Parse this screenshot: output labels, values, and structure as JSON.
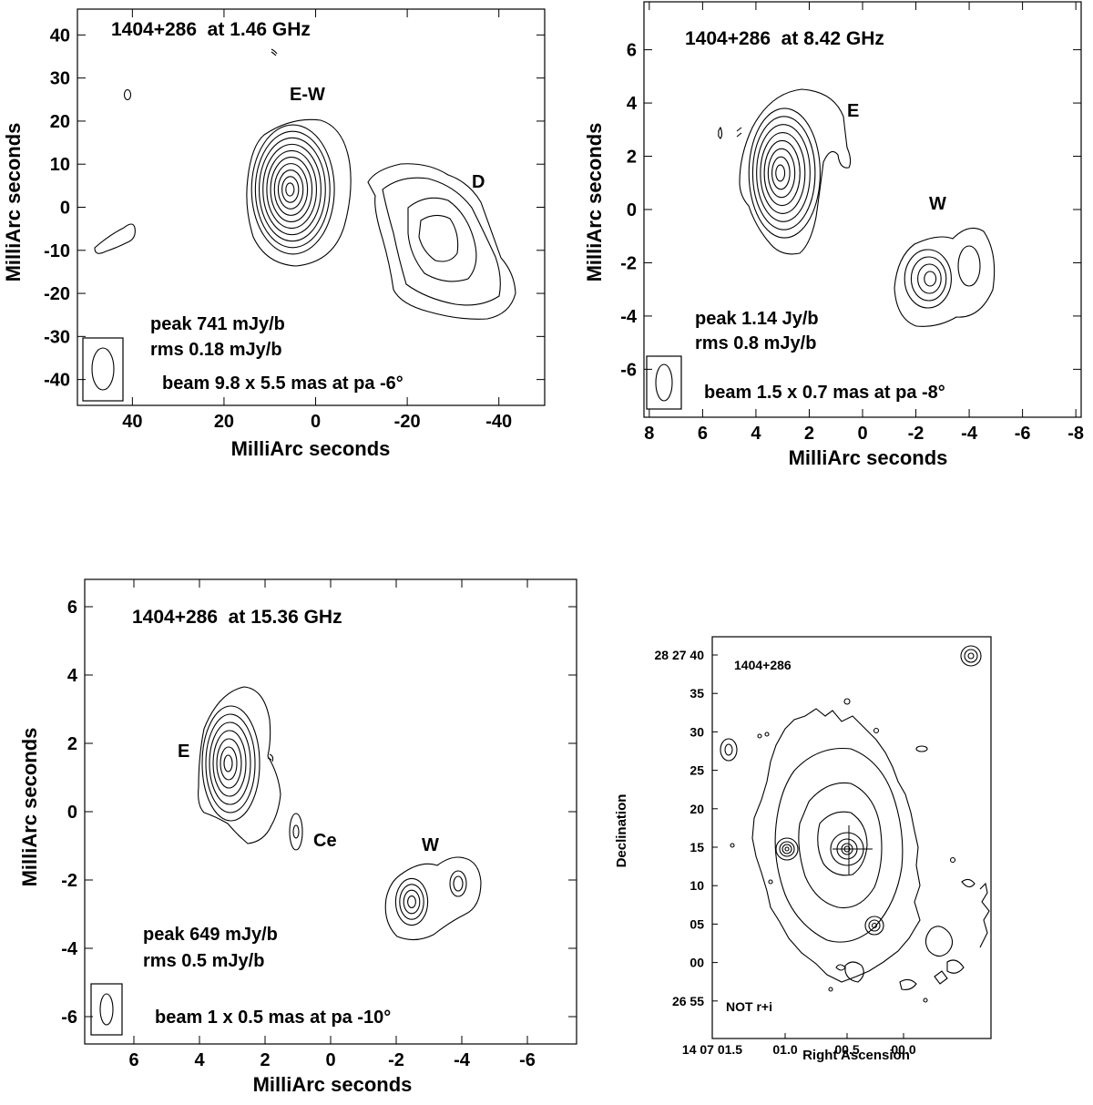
{
  "chart_data": [
    {
      "type": "contour",
      "title": "1404+286  at 1.46 GHz",
      "xlabel": "MilliArc seconds",
      "ylabel": "MilliArc seconds",
      "xlim": [
        52,
        -50
      ],
      "ylim": [
        -46,
        46
      ],
      "xticks": [
        40,
        20,
        0,
        -20,
        -40
      ],
      "yticks": [
        40,
        30,
        20,
        10,
        0,
        -10,
        -20,
        -30,
        -40
      ],
      "annotations": [
        "peak 741 mJy/b",
        "rms 0.18 mJy/b",
        "beam 9.8 x 5.5 mas at pa -6°"
      ],
      "components": [
        {
          "label": "E-W",
          "x": 4,
          "y": 4
        },
        {
          "label": "D",
          "x": -28,
          "y": -6
        }
      ]
    },
    {
      "type": "contour",
      "title": "1404+286  at 8.42 GHz",
      "xlabel": "MilliArc seconds",
      "ylabel": "MilliArc seconds",
      "xlim": [
        8.2,
        -8.2
      ],
      "ylim": [
        -7.8,
        7.8
      ],
      "xticks": [
        8,
        6,
        4,
        2,
        0,
        -2,
        -4,
        -6,
        -8
      ],
      "yticks": [
        6,
        4,
        2,
        0,
        -2,
        -4,
        -6
      ],
      "annotations": [
        "peak 1.14 Jy/b",
        "rms 0.8 mJy/b",
        "beam 1.5 x 0.7 mas at pa -8°"
      ],
      "components": [
        {
          "label": "E",
          "x": 2.8,
          "y": 1.3
        },
        {
          "label": "W",
          "x": -2.7,
          "y": -2.7
        }
      ]
    },
    {
      "type": "contour",
      "title": "1404+286  at 15.36 GHz",
      "xlabel": "MilliArc seconds",
      "ylabel": "MilliArc seconds",
      "xlim": [
        7.5,
        -7.5
      ],
      "ylim": [
        -6.8,
        6.8
      ],
      "xticks": [
        6,
        4,
        2,
        0,
        -2,
        -4,
        -6
      ],
      "yticks": [
        6,
        4,
        2,
        0,
        -2,
        -4,
        -6
      ],
      "annotations": [
        "peak 649 mJy/b",
        "rms 0.5 mJy/b",
        "beam 1 x 0.5 mas at pa -10°"
      ],
      "components": [
        {
          "label": "E",
          "x": 3.0,
          "y": 1.3
        },
        {
          "label": "Ce",
          "x": 1.0,
          "y": -0.7
        },
        {
          "label": "W",
          "x": -2.4,
          "y": -2.7
        }
      ]
    },
    {
      "type": "contour",
      "title": "1404+286",
      "xlabel": "Right Ascension",
      "ylabel": "Declination",
      "xticks": [
        "14 07 01.5",
        "01.0",
        "00.5",
        "00.0"
      ],
      "yticks": [
        "28 27 40",
        "35",
        "30",
        "25",
        "20",
        "15",
        "10",
        "05",
        "00",
        "26 55"
      ],
      "annotations": [
        "NOT r+i"
      ]
    }
  ]
}
